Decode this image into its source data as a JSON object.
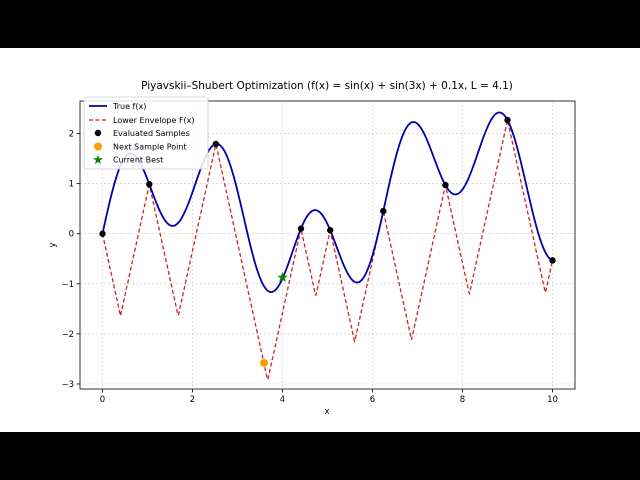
{
  "chart_data": {
    "type": "line",
    "title": "Piyavskii–Shubert Optimization (f(x) = sin(x) + sin(3x) + 0.1x, L = 4.1)",
    "xlabel": "x",
    "ylabel": "y",
    "xlim": [
      -0.5,
      10.5
    ],
    "ylim": [
      -3.1,
      2.65
    ],
    "x_ticks": [
      "0",
      "2",
      "4",
      "6",
      "8",
      "10"
    ],
    "y_ticks": [
      "−3",
      "−2",
      "−1",
      "0",
      "1",
      "2"
    ],
    "grid": true,
    "legend_position": "top-left",
    "lipschitz_L": 4.1,
    "series": [
      {
        "name": "True f(x)",
        "kind": "curve",
        "color": "#0000aa",
        "function": "sin(x) + sin(3x) + 0.1x",
        "x_range": [
          0,
          10
        ]
      },
      {
        "name": "Lower Envelope F(x)",
        "kind": "envelope",
        "color": "#cc2222",
        "style": "dashed"
      },
      {
        "name": "Evaluated Samples",
        "kind": "points",
        "color": "#000000",
        "x": [
          0,
          1.04,
          2.52,
          4.41,
          5.06,
          6.24,
          7.62,
          9.0,
          10.0
        ]
      },
      {
        "name": "Next Sample Point",
        "kind": "point",
        "color": "#f5a000",
        "x": 3.59,
        "y": -2.58
      },
      {
        "name": "Current Best",
        "kind": "marker",
        "color": "#008800",
        "x": 4.0,
        "y": -0.87
      }
    ]
  }
}
